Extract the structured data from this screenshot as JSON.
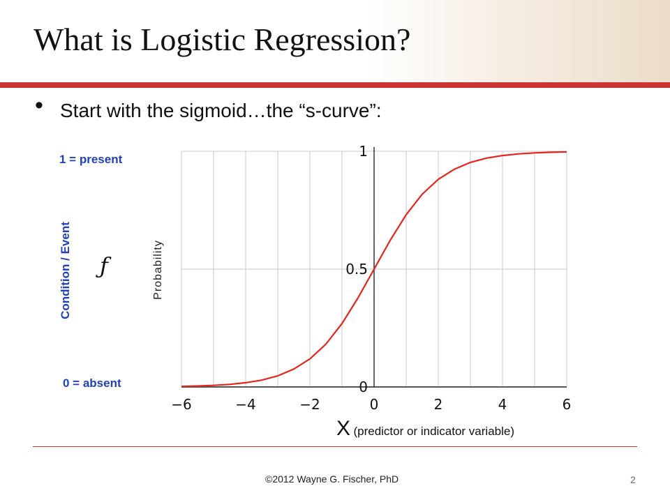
{
  "slide": {
    "title": "What is Logistic Regression?",
    "bullet": "Start with the sigmoid…the “s-curve”:",
    "copyright": "©2012 Wayne G. Fischer, PhD",
    "page_number": "2"
  },
  "annotations": {
    "present": "1 = present",
    "absent": "0 = absent",
    "condition": "Condition / Event",
    "f_symbol": "ƒ",
    "x_symbol": "X",
    "x_desc": "(predictor or indicator variable)"
  },
  "colors": {
    "accent_red": "#cc3333",
    "curve_red": "#e8231c",
    "label_blue": "#1f3fbf"
  },
  "chart_data": {
    "type": "line",
    "function": "sigmoid 1/(1+e^-x)",
    "ylabel": "Probability",
    "xlim": [
      -6,
      6
    ],
    "ylim": [
      0,
      1
    ],
    "x_ticks": [
      -6,
      -4,
      -2,
      0,
      2,
      4,
      6
    ],
    "x_tick_labels": [
      "−6",
      "−4",
      "−2",
      "0",
      "2",
      "4",
      "6"
    ],
    "y_ticks": [
      0,
      0.5,
      1
    ],
    "y_tick_labels": [
      "0",
      "0.5",
      "1"
    ],
    "grid": true,
    "series": [
      {
        "color": "#e8231c",
        "x": [
          -6,
          -5.5,
          -5,
          -4.5,
          -4,
          -3.5,
          -3,
          -2.5,
          -2,
          -1.5,
          -1,
          -0.5,
          0,
          0.5,
          1,
          1.5,
          2,
          2.5,
          3,
          3.5,
          4,
          4.5,
          5,
          5.5,
          6
        ],
        "y": [
          0.0025,
          0.0041,
          0.0067,
          0.011,
          0.018,
          0.029,
          0.047,
          0.076,
          0.119,
          0.182,
          0.269,
          0.378,
          0.5,
          0.622,
          0.731,
          0.818,
          0.881,
          0.924,
          0.953,
          0.971,
          0.982,
          0.989,
          0.9933,
          0.9959,
          0.9975
        ]
      }
    ]
  }
}
